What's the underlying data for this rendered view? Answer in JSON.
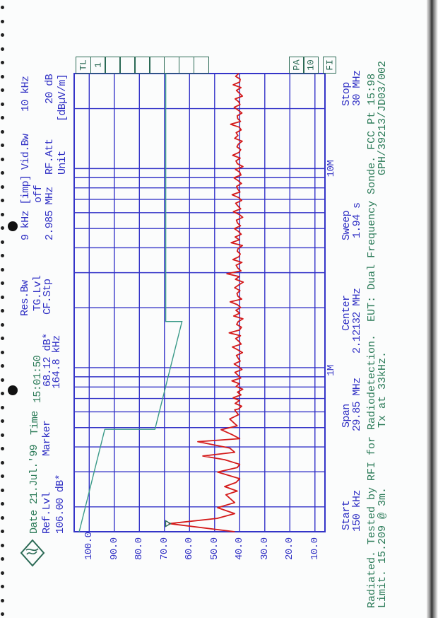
{
  "header": {
    "date_label": "Date",
    "date": "21.Jul.'99",
    "time_label": "Time",
    "time": "15:01:50",
    "ref_lvl_label": "Ref.Lvl",
    "ref_lvl": "106.00 dB*",
    "marker_label": "Marker",
    "marker_level": "68.12 dB*",
    "marker_freq": "164.8 kHz",
    "res_bw_label": "Res.Bw",
    "res_bw": "9 kHz [imp]",
    "tg_lvl_label": "TG.Lvl",
    "tg_lvl": "off",
    "cf_stp_label": "CF.Stp",
    "cf_stp": "2.985 MHz",
    "vid_bw_label": "Vid.Bw",
    "vid_bw": "10 kHz",
    "rf_att_label": "RF.Att",
    "rf_att": "20 dB",
    "unit_label": "Unit",
    "unit": "[dBµV/m]"
  },
  "boxes": {
    "left": [
      "TL",
      "1",
      "",
      "",
      "",
      "",
      "",
      "",
      ""
    ],
    "right": [
      "PA",
      "10"
    ],
    "fi": "FI"
  },
  "footer": {
    "start_label": "Start",
    "start": "150 kHz",
    "span_label": "Span",
    "span": "29.85 MHz",
    "center_label": "Center",
    "center": "2.12132 MHz",
    "sweep_label": "Sweep",
    "sweep": "1.94 s",
    "stop_label": "Stop",
    "stop": "30 MHz",
    "note_line1": "Radiated. Tested by RFI for Radiodetection.  EUT: Dual Frequency Sonde. FCC Pt 15:98",
    "note_limit": "Limit. 15.209 @ 3m.",
    "note_tx": "Tx at 33kHz.",
    "note_ref": "GPH/39213/JD03/002"
  },
  "colors": {
    "grid": "#3434c8",
    "trace": "#d41a1a",
    "limit": "#3a9a88",
    "text_green": "#2b7b58",
    "text_blue": "#2f2fc4"
  },
  "chart_data": {
    "type": "line",
    "x_scale": "log",
    "xlim_khz": [
      150,
      30000
    ],
    "ylim": [
      6,
      106
    ],
    "y_unit": "dBµV/m",
    "y_ticks": [
      100,
      90,
      80,
      70,
      60,
      50,
      40,
      30,
      20,
      10
    ],
    "y_tick_labels": [
      "100.0",
      "90.0",
      "80.0",
      "70.0",
      "60.0",
      "50.0",
      "40.0",
      "30.0",
      "20.0",
      "10.0"
    ],
    "x_grid_khz": [
      200,
      300,
      400,
      500,
      600,
      700,
      800,
      900,
      1000,
      2000,
      3000,
      4000,
      5000,
      6000,
      7000,
      8000,
      9000,
      10000,
      20000
    ],
    "x_labels": [
      {
        "khz": 1000,
        "text": "1M"
      },
      {
        "khz": 10000,
        "text": "10M"
      }
    ],
    "grid": true,
    "trace_peaks": [
      [
        150,
        42
      ],
      [
        164.8,
        68.1
      ],
      [
        175,
        49
      ],
      [
        185,
        42
      ],
      [
        198,
        48.8
      ],
      [
        210,
        42
      ],
      [
        230,
        45.5
      ],
      [
        240,
        41
      ],
      [
        253,
        46
      ],
      [
        265,
        41.5
      ],
      [
        277,
        40
      ],
      [
        299,
        48.8
      ],
      [
        315,
        41
      ],
      [
        327,
        40
      ],
      [
        345,
        46
      ],
      [
        360,
        54.7
      ],
      [
        376,
        42
      ],
      [
        395,
        44
      ],
      [
        425,
        56.7
      ],
      [
        440,
        40
      ],
      [
        461,
        43
      ],
      [
        488,
        47.4
      ],
      [
        510,
        41
      ],
      [
        552,
        44
      ],
      [
        580,
        40.5
      ],
      [
        614,
        42
      ]
    ],
    "trace_noise": {
      "freq_range_khz": [
        620,
        30000
      ],
      "values": [
        40.5,
        39.2,
        41.8,
        40.1,
        42.6,
        39.5,
        40.9,
        38.8,
        41.4,
        40.2,
        43.1,
        39.6,
        40.7,
        41.9,
        39.1,
        40.4,
        42.2,
        39.8,
        40.6,
        41.3,
        38.9,
        40.8,
        42.9,
        39.4,
        40.3,
        41.6,
        39.7,
        44.2,
        40.1,
        39.3,
        41.2,
        40.6,
        38.7,
        42.4,
        40.0,
        41.5,
        39.6,
        40.9,
        43.8,
        39.2,
        40.7,
        41.1,
        39.9,
        42.0,
        40.4,
        38.6,
        41.7,
        40.2,
        45.1,
        39.5,
        40.8,
        41.4,
        39.1,
        42.7,
        40.3,
        39.8,
        41.0,
        40.6,
        38.9,
        43.4,
        40.1,
        41.8,
        39.4,
        40.5,
        42.1,
        39.7,
        40.9,
        41.3,
        38.8,
        40.2,
        42.5,
        39.6,
        40.7,
        41.6,
        39.2,
        40.4,
        43.0,
        39.9,
        40.8,
        41.2,
        39.3,
        40.6,
        42.3,
        39.5,
        40.0,
        41.7,
        38.7,
        40.9,
        41.5,
        39.8,
        42.8,
        40.3,
        39.6,
        41.1,
        40.5,
        39.0,
        42.0,
        40.7,
        41.4,
        39.4,
        40.2,
        43.6,
        39.7,
        40.8,
        41.0,
        39.1,
        40.6,
        42.2,
        39.9,
        40.4,
        41.8,
        38.9,
        40.1,
        41.3,
        39.5,
        42.6,
        40.0,
        39.8,
        41.6,
        40.4
      ]
    },
    "limit_line": [
      [
        150,
        104
      ],
      [
        490,
        93.8
      ],
      [
        490,
        73.8
      ],
      [
        1705,
        63
      ],
      [
        1705,
        69.5
      ],
      [
        30000,
        69.5
      ]
    ],
    "marker": {
      "freq_khz": 164.8,
      "level": 68.12
    }
  }
}
